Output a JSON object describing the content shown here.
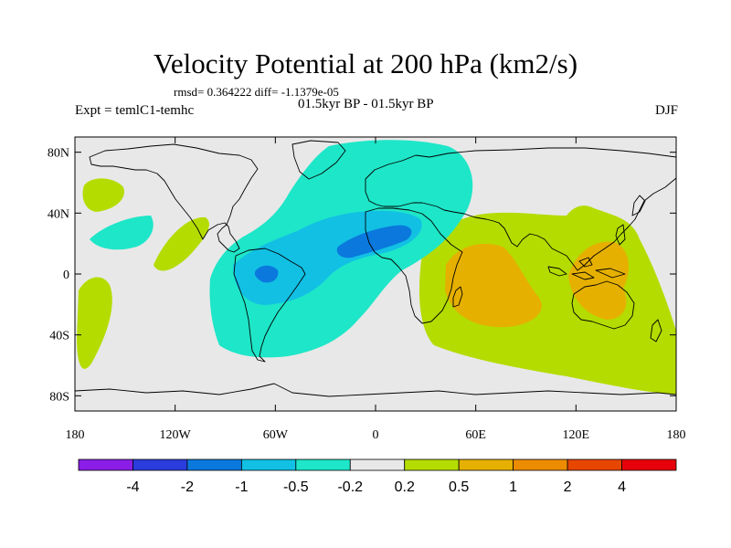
{
  "title": "Velocity Potential at 200 hPa (km2/s)",
  "rmsd_line": "rmsd= 0.364222 diff= -1.1379e-05",
  "experiment": "Expt = temlC1-temhc",
  "period": "01.5kyr BP - 01.5kyr BP",
  "season": "DJF",
  "map": {
    "lon_range": [
      -180,
      180
    ],
    "lat_range": [
      -90,
      90
    ],
    "lon_ticks": [
      "180",
      "120W",
      "60W",
      "0",
      "60E",
      "120E",
      "180"
    ],
    "lat_ticks": [
      "80N",
      "40N",
      "0",
      "40S",
      "80S"
    ],
    "background_color": "#e8e8e8",
    "coastline_color": "#000000"
  },
  "colorbar": {
    "labels": [
      "-4",
      "-2",
      "-1",
      "-0.5",
      "-0.2",
      "0.2",
      "0.5",
      "1",
      "2",
      "4"
    ],
    "colors": [
      "#8a1ee6",
      "#2a3cdc",
      "#0a78dc",
      "#12c0e4",
      "#1ee6c8",
      "#e8e8e8",
      "#b4dc00",
      "#e6b000",
      "#ec8c00",
      "#e64600",
      "#e6000a"
    ]
  }
}
